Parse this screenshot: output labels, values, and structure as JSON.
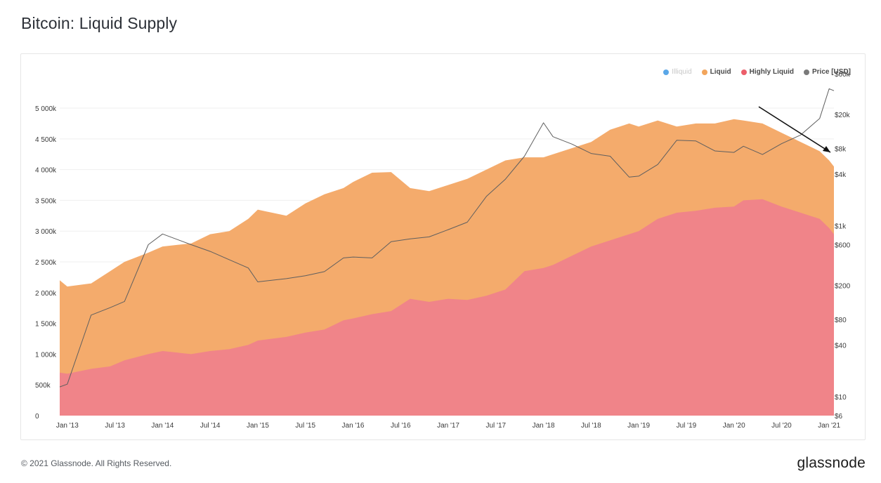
{
  "title": "Bitcoin: Liquid Supply",
  "footer": {
    "copyright": "© 2021 Glassnode. All Rights Reserved.",
    "logo_text": "glassnode"
  },
  "watermark": "glassnode",
  "legend": [
    {
      "label": "Illiquid",
      "color": "#5aa7e8",
      "active": false
    },
    {
      "label": "Liquid",
      "color": "#f2a55c",
      "active": true
    },
    {
      "label": "Highly Liquid",
      "color": "#ec5e6a",
      "active": true
    },
    {
      "label": "Price [USD]",
      "color": "#7a7a7a",
      "active": true
    }
  ],
  "colors": {
    "liquid_fill": "#f4ab6c",
    "highly_liquid_fill": "#f08489",
    "price_line": "#5f5f5f",
    "grid": "#efefef",
    "annotation_arrow": "#111111"
  },
  "chart_data": {
    "type": "area",
    "title": "Bitcoin: Liquid Supply",
    "x_ticks": [
      "Jan '13",
      "Jul '13",
      "Jan '14",
      "Jul '14",
      "Jan '15",
      "Jul '15",
      "Jan '16",
      "Jul '16",
      "Jan '17",
      "Jul '17",
      "Jan '18",
      "Jul '18",
      "Jan '19",
      "Jul '19",
      "Jan '20",
      "Jul '20",
      "Jan '21"
    ],
    "x": [
      2012.92,
      2013.0,
      2013.25,
      2013.45,
      2013.6,
      2013.85,
      2014.0,
      2014.3,
      2014.5,
      2014.7,
      2014.9,
      2015.0,
      2015.3,
      2015.5,
      2015.7,
      2015.9,
      2016.0,
      2016.2,
      2016.4,
      2016.6,
      2016.8,
      2017.0,
      2017.2,
      2017.4,
      2017.6,
      2017.8,
      2018.0,
      2018.1,
      2018.3,
      2018.5,
      2018.7,
      2018.9,
      2019.0,
      2019.2,
      2019.4,
      2019.6,
      2019.8,
      2020.0,
      2020.1,
      2020.3,
      2020.5,
      2020.7,
      2020.9,
      2021.0,
      2021.05
    ],
    "y_left_ticks": [
      "0",
      "500k",
      "1 000k",
      "1 500k",
      "2 000k",
      "2 500k",
      "3 000k",
      "3 500k",
      "4 000k",
      "4 500k",
      "5 000k"
    ],
    "y_left_range": [
      0,
      5000000
    ],
    "y_right_ticks": [
      "$6",
      "$10",
      "$40",
      "$80",
      "$200",
      "$600",
      "$1k",
      "$4k",
      "$8k",
      "$20k",
      "$60k"
    ],
    "y_right_range": [
      6,
      60000
    ],
    "y_right_scale": "log",
    "grid": true,
    "legend_position": "top-right",
    "series": [
      {
        "name": "Highly Liquid",
        "values": [
          700000,
          680000,
          760000,
          800000,
          900000,
          1000000,
          1050000,
          1000000,
          1050000,
          1080000,
          1150000,
          1220000,
          1280000,
          1350000,
          1400000,
          1550000,
          1580000,
          1650000,
          1700000,
          1900000,
          1850000,
          1900000,
          1880000,
          1950000,
          2050000,
          2350000,
          2400000,
          2450000,
          2600000,
          2750000,
          2850000,
          2950000,
          3000000,
          3200000,
          3300000,
          3330000,
          3380000,
          3400000,
          3500000,
          3520000,
          3400000,
          3300000,
          3200000,
          3050000,
          2950000
        ]
      },
      {
        "name": "Liquid",
        "values": [
          2200000,
          2100000,
          2150000,
          2350000,
          2500000,
          2650000,
          2750000,
          2800000,
          2950000,
          3000000,
          3200000,
          3350000,
          3250000,
          3450000,
          3600000,
          3700000,
          3800000,
          3950000,
          3960000,
          3700000,
          3650000,
          3750000,
          3850000,
          4000000,
          4150000,
          4200000,
          4200000,
          4250000,
          4350000,
          4450000,
          4650000,
          4750000,
          4700000,
          4800000,
          4700000,
          4750000,
          4750000,
          4820000,
          4800000,
          4750000,
          4600000,
          4450000,
          4300000,
          4150000,
          4050000
        ]
      },
      {
        "name": "Price [USD]",
        "values": [
          13,
          14,
          90,
          110,
          130,
          600,
          800,
          600,
          500,
          400,
          320,
          220,
          240,
          260,
          290,
          420,
          430,
          420,
          650,
          700,
          740,
          900,
          1100,
          2200,
          3500,
          6500,
          16000,
          11000,
          9000,
          7000,
          6500,
          3700,
          3800,
          5200,
          10000,
          9800,
          7500,
          7200,
          8500,
          6800,
          9100,
          11500,
          18000,
          40000,
          38000
        ]
      }
    ],
    "annotations": [
      "arrow pointing down to latest Liquid supply decline"
    ]
  }
}
